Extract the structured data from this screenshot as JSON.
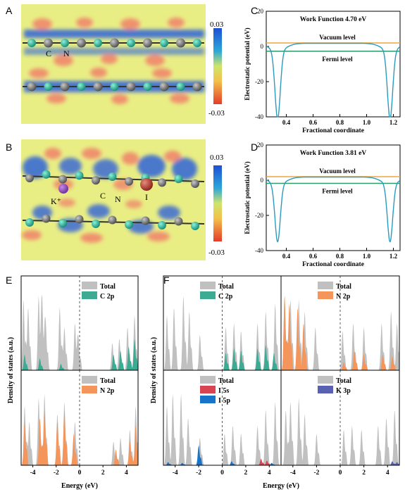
{
  "panels": {
    "A": {
      "label": "A",
      "colorbar": {
        "max": "0.03",
        "min": "-0.03"
      },
      "atom_labels": [
        "C",
        "N"
      ]
    },
    "B": {
      "label": "B",
      "colorbar": {
        "max": "0.03",
        "min": "-0.03"
      },
      "atom_labels": [
        "K⁺",
        "C",
        "N",
        "I"
      ]
    },
    "E": {
      "label": "E"
    },
    "F": {
      "label": "F"
    }
  },
  "chart_data": [
    {
      "id": "C",
      "label": "C",
      "type": "line",
      "annotation": "Work Function 4.70 eV",
      "xlabel": "Fractional coordinate",
      "ylabel": "Electrostatic potential (eV)",
      "xlim": [
        0.25,
        1.25
      ],
      "ylim": [
        -40,
        20
      ],
      "xticks": [
        "0.4",
        "0.6",
        "0.8",
        "1.0",
        "1.2"
      ],
      "yticks": [
        "20",
        "0",
        "-20",
        "-40"
      ],
      "vacuum_level": 2.0,
      "fermi_level": -2.7,
      "vacuum_label": "Vacuum level",
      "fermi_label": "Fermi level",
      "plateau": 1.8,
      "wells": [
        {
          "x": 0.335,
          "depth": -37.0
        },
        {
          "x": 1.175,
          "depth": -37.0
        }
      ],
      "colors": {
        "curve": "#2a9bbf",
        "vacuum": "#f0a640",
        "fermi": "#2e9a6a"
      }
    },
    {
      "id": "D",
      "label": "D",
      "type": "line",
      "annotation": "Work Function 3.81 eV",
      "xlabel": "Fractional coordinate",
      "ylabel": "Electrostatic potential (eV)",
      "xlim": [
        0.25,
        1.25
      ],
      "ylim": [
        -40,
        20
      ],
      "xticks": [
        "0.4",
        "0.6",
        "0.8",
        "1.0",
        "1.2"
      ],
      "yticks": [
        "20",
        "0",
        "-20",
        "-40"
      ],
      "vacuum_level": 2.0,
      "fermi_level": -1.8,
      "vacuum_label": "Vacuum level",
      "fermi_label": "Fermi level",
      "plateau": 1.8,
      "wells": [
        {
          "x": 0.335,
          "depth": -31.0
        },
        {
          "x": 1.175,
          "depth": -31.0
        }
      ],
      "colors": {
        "curve": "#2a9bbf",
        "vacuum": "#f0a640",
        "fermi": "#2e9a6a"
      }
    },
    {
      "id": "DOS",
      "type": "area",
      "xlabel": "Energy (eV)",
      "ylabel": "Density of states (a.u.)",
      "xlim": [
        -5,
        5
      ],
      "xticks": [
        "-4",
        "-2",
        "0",
        "2",
        "4"
      ],
      "colors": {
        "total": "#c0c0c0",
        "C2p": "#3dab94",
        "N2p": "#f4955c",
        "I5s": "#d94452",
        "I5p": "#1874c9",
        "K3p": "#5b61b2"
      },
      "subplots": [
        {
          "id": "E-top",
          "legend": [
            "Total",
            "C 2p"
          ],
          "partials": [
            "C 2p"
          ],
          "total_peaks": [
            [
              -4.8,
              0.9
            ],
            [
              -4.4,
              0.8
            ],
            [
              -3.5,
              0.95
            ],
            [
              -3.2,
              0.9
            ],
            [
              -2.9,
              0.6
            ],
            [
              -1.7,
              0.8
            ],
            [
              -1.3,
              0.55
            ],
            [
              -0.4,
              0.6
            ],
            [
              -0.1,
              0.4
            ],
            [
              2.8,
              0.35
            ],
            [
              3.4,
              0.4
            ],
            [
              4.1,
              0.55
            ],
            [
              4.7,
              0.7
            ]
          ],
          "partial_peaks": {
            "C 2p": [
              [
                -4.7,
                0.2
              ],
              [
                -3.4,
                0.15
              ],
              [
                -1.6,
                0.08
              ],
              [
                2.9,
                0.2
              ],
              [
                3.5,
                0.25
              ],
              [
                4.2,
                0.3
              ],
              [
                4.7,
                0.4
              ]
            ]
          }
        },
        {
          "id": "E-bottom",
          "legend": [
            "Total",
            "N 2p"
          ],
          "partials": [
            "N 2p"
          ],
          "total_peaks": [
            [
              -4.7,
              0.75
            ],
            [
              -4.3,
              0.55
            ],
            [
              -3.5,
              0.85
            ],
            [
              -3.0,
              0.9
            ],
            [
              -1.9,
              0.65
            ],
            [
              -1.3,
              0.8
            ],
            [
              -0.4,
              0.55
            ],
            [
              2.9,
              0.3
            ],
            [
              3.5,
              0.35
            ],
            [
              4.3,
              0.45
            ],
            [
              4.8,
              0.75
            ]
          ],
          "partial_peaks": {
            "N 2p": [
              [
                -4.7,
                0.55
              ],
              [
                -3.4,
                0.6
              ],
              [
                -3.0,
                0.7
              ],
              [
                -1.9,
                0.55
              ],
              [
                -1.3,
                0.7
              ],
              [
                -0.5,
                0.4
              ],
              [
                3.1,
                0.2
              ],
              [
                4.3,
                0.3
              ],
              [
                4.8,
                0.5
              ]
            ]
          }
        },
        {
          "id": "F-top-left",
          "legend": [
            "Total",
            "C 2p"
          ],
          "partials": [
            "C 2p"
          ],
          "total_peaks": [
            [
              -4.7,
              0.7
            ],
            [
              -4.1,
              0.8
            ],
            [
              -3.3,
              0.95
            ],
            [
              -2.8,
              0.75
            ],
            [
              -1.9,
              0.45
            ],
            [
              0.3,
              0.55
            ],
            [
              1.0,
              0.6
            ],
            [
              1.6,
              0.5
            ],
            [
              3.0,
              0.6
            ],
            [
              3.7,
              0.75
            ],
            [
              4.5,
              0.85
            ]
          ],
          "partial_peaks": {
            "C 2p": [
              [
                0.3,
                0.22
              ],
              [
                1.0,
                0.28
              ],
              [
                1.6,
                0.25
              ],
              [
                3.0,
                0.28
              ],
              [
                3.7,
                0.32
              ],
              [
                4.4,
                0.22
              ]
            ]
          }
        },
        {
          "id": "F-top-right",
          "legend": [
            "Total",
            "N 2p"
          ],
          "partials": [
            "N 2p"
          ],
          "total_peaks": [
            [
              -4.7,
              0.95
            ],
            [
              -4.2,
              0.9
            ],
            [
              -3.5,
              0.9
            ],
            [
              -3.0,
              0.75
            ],
            [
              -2.1,
              0.55
            ],
            [
              0.2,
              0.5
            ],
            [
              1.1,
              0.6
            ],
            [
              2.0,
              0.55
            ],
            [
              3.5,
              0.6
            ],
            [
              4.3,
              0.75
            ],
            [
              4.8,
              0.6
            ]
          ],
          "partial_peaks": {
            "N 2p": [
              [
                -4.7,
                0.95
              ],
              [
                -4.3,
                0.85
              ],
              [
                -3.6,
                0.8
              ],
              [
                -3.1,
                0.6
              ],
              [
                0.3,
                0.1
              ],
              [
                1.2,
                0.25
              ],
              [
                2.0,
                0.2
              ],
              [
                3.6,
                0.2
              ],
              [
                4.4,
                0.18
              ]
            ]
          }
        },
        {
          "id": "F-bottom-left",
          "legend": [
            "Total",
            "I 5s",
            "I 5p"
          ],
          "partials": [
            "I 5s",
            "I 5p"
          ],
          "total_peaks": [
            [
              -4.7,
              0.75
            ],
            [
              -4.2,
              0.9
            ],
            [
              -3.5,
              0.9
            ],
            [
              -2.9,
              0.6
            ],
            [
              -1.9,
              0.35
            ],
            [
              0.2,
              0.4
            ],
            [
              0.9,
              0.5
            ],
            [
              1.6,
              0.4
            ],
            [
              3.0,
              0.5
            ],
            [
              3.7,
              0.7
            ],
            [
              4.5,
              0.8
            ]
          ],
          "partial_peaks": {
            "I 5s": [
              [
                3.3,
                0.08
              ],
              [
                3.8,
                0.06
              ]
            ],
            "I 5p": [
              [
                -4.6,
                0.04
              ],
              [
                -3.4,
                0.03
              ],
              [
                -2.0,
                0.25
              ],
              [
                0.8,
                0.05
              ],
              [
                4.2,
                0.03
              ]
            ]
          }
        },
        {
          "id": "F-bottom-right",
          "legend": [
            "Total",
            "K 3p"
          ],
          "partials": [
            "K 3p"
          ],
          "total_peaks": [
            [
              -4.6,
              0.7
            ],
            [
              -4.2,
              0.8
            ],
            [
              -3.5,
              0.85
            ],
            [
              -3.0,
              0.65
            ],
            [
              -2.0,
              0.4
            ],
            [
              0.3,
              0.45
            ],
            [
              1.0,
              0.5
            ],
            [
              1.8,
              0.45
            ],
            [
              3.2,
              0.5
            ],
            [
              3.9,
              0.6
            ],
            [
              4.6,
              0.7
            ]
          ],
          "partial_peaks": {
            "K 3p": [
              [
                4.4,
                0.05
              ],
              [
                4.8,
                0.04
              ]
            ]
          }
        }
      ]
    }
  ]
}
